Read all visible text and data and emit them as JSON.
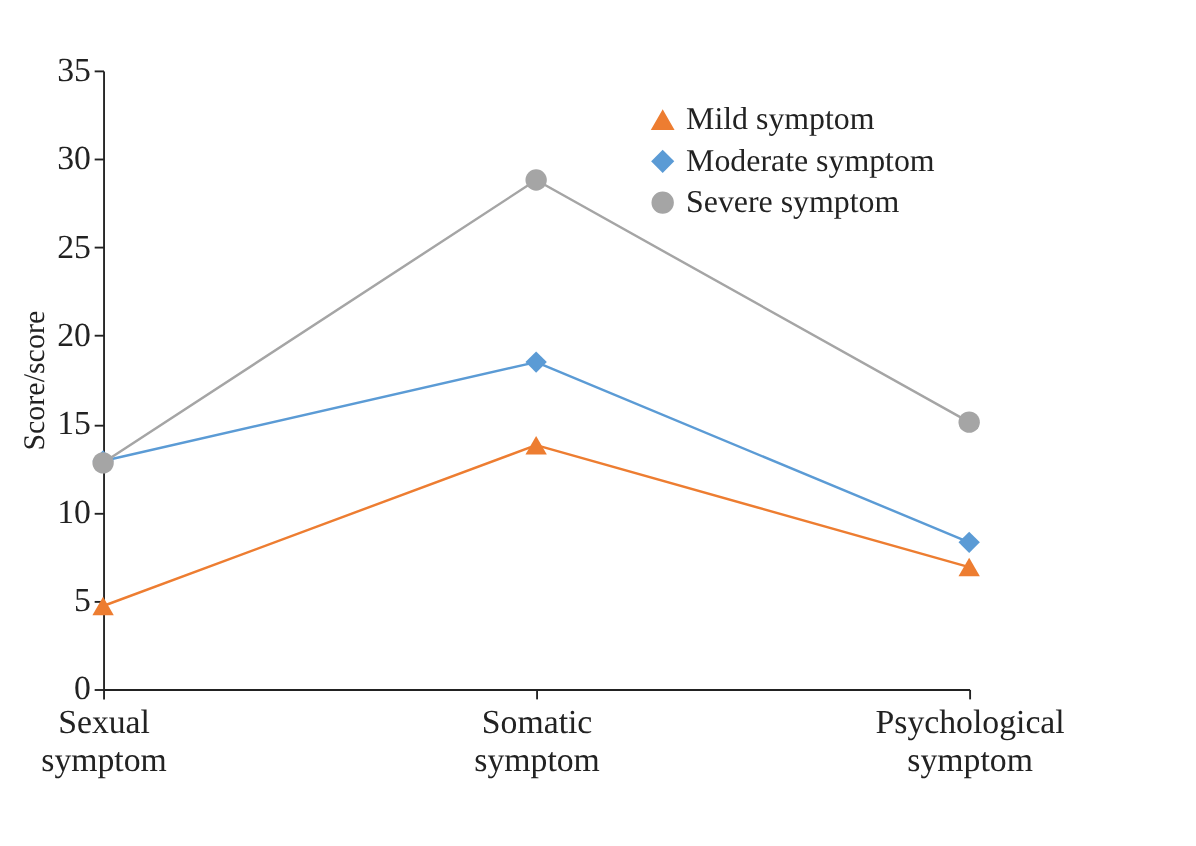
{
  "chart_data": {
    "type": "line",
    "ylabel": "Score/score",
    "categories": [
      "Sexual symptom",
      "Somatic symptom",
      "Psychological symptom"
    ],
    "series": [
      {
        "name": "Mild symptom",
        "color": "#ed7d31",
        "marker": "triangle",
        "values": [
          4.7,
          13.8,
          6.9
        ]
      },
      {
        "name": "Moderate symptom",
        "color": "#5b9bd5",
        "marker": "diamond",
        "values": [
          12.9,
          18.5,
          8.3
        ]
      },
      {
        "name": "Severe symptom",
        "color": "#a5a5a5",
        "marker": "circle",
        "values": [
          12.8,
          28.8,
          15.1
        ]
      }
    ],
    "ylim": [
      0,
      35
    ],
    "yticks": [
      0,
      5,
      10,
      15,
      20,
      25,
      30,
      35
    ],
    "grid": false,
    "legend": "top right",
    "line_style": "solid"
  }
}
